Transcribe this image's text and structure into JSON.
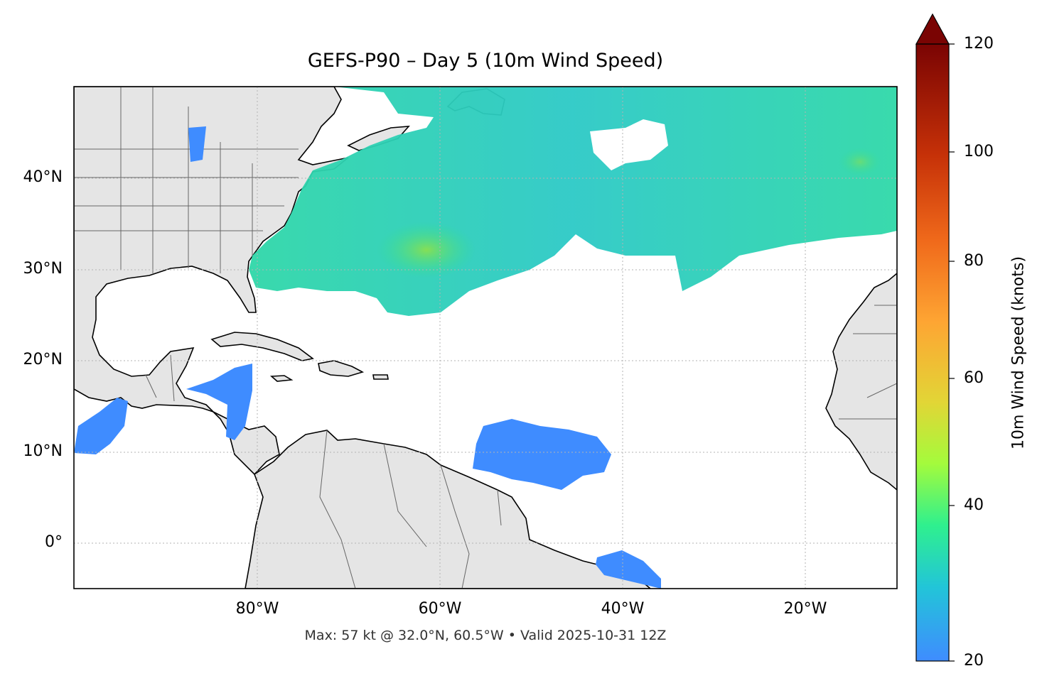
{
  "title": "GEFS-P90 – Day 5 (10m Wind Speed)",
  "footer": "Max: 57 kt @ 32.0°N, 60.5°W • Valid 2025-10-31 12Z",
  "map": {
    "lon_range": [
      -100,
      -10
    ],
    "lat_range": [
      -5,
      50
    ],
    "gridlines": "dotted",
    "land_color": "#e5e5e5",
    "coast_color": "#000000",
    "border_color": "#666666",
    "lat_labels": [
      "40°N",
      "30°N",
      "20°N",
      "10°N",
      "0°"
    ],
    "lon_labels": [
      "80°W",
      "60°W",
      "40°W",
      "20°W"
    ]
  },
  "colorbar": {
    "label": "10m Wind Speed (knots)",
    "range": [
      20,
      120
    ],
    "extend": "max",
    "ticks": [
      "20",
      "40",
      "60",
      "80",
      "100",
      "120"
    ],
    "colormap": [
      "#3f8cff",
      "#22c5d8",
      "#2ff08e",
      "#a4fb3c",
      "#e2d536",
      "#fea533",
      "#f06a1b",
      "#c63108",
      "#7a0403"
    ]
  }
}
